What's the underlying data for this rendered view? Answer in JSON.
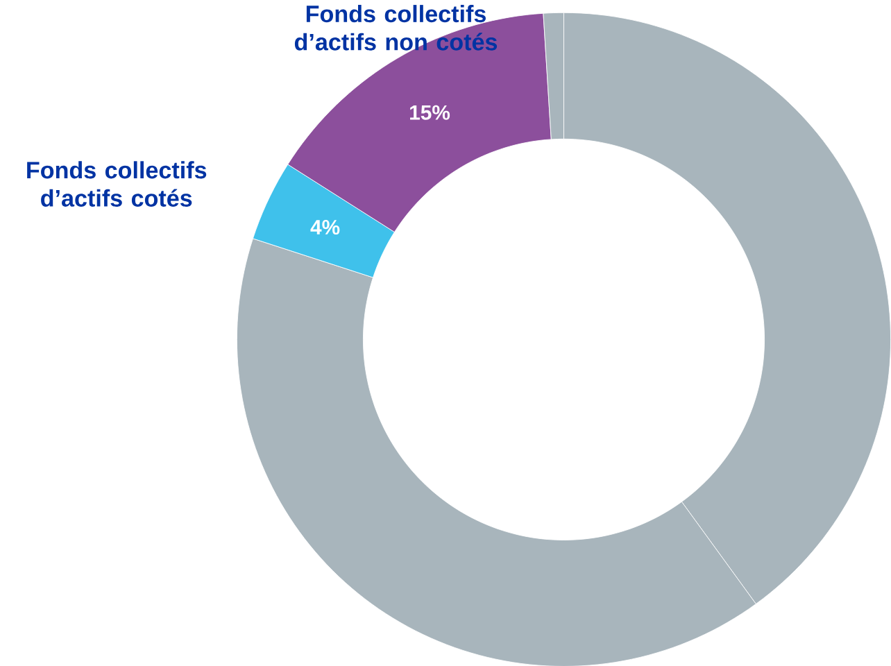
{
  "chart_data": {
    "type": "donut",
    "categories": [
      null,
      null,
      "Fonds collectifs d’actifs cotés",
      "Fonds collectifs d’actifs non cotés",
      null
    ],
    "values": [
      40,
      40,
      4,
      15,
      1
    ],
    "colors": [
      "#a8b5bc",
      "#a8b5bc",
      "#3fc1eb",
      "#8c4f9c",
      "#a8b5bc"
    ],
    "value_labels": [
      null,
      null,
      "4%",
      "15%",
      null
    ]
  }
}
